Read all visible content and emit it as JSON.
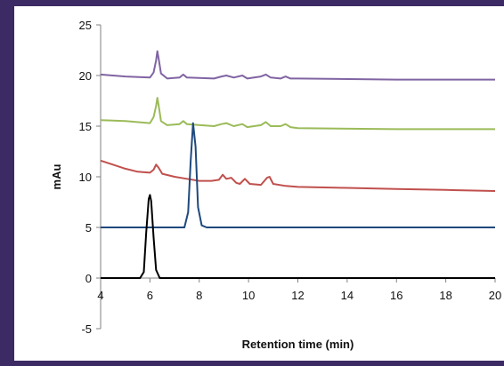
{
  "chart_data": {
    "type": "line",
    "title": "",
    "xlabel": "Retention time (min)",
    "ylabel": "mAu",
    "xlim": [
      4,
      20
    ],
    "ylim": [
      -5,
      25
    ],
    "x_ticks": [
      "4",
      "6",
      "8",
      "10",
      "12",
      "14",
      "16",
      "18",
      "20"
    ],
    "y_ticks": [
      "-5",
      "0",
      "5",
      "10",
      "15",
      "20",
      "25"
    ],
    "grid": false,
    "legend": "none",
    "series": [
      {
        "color": "#8064a2",
        "points": [
          [
            4.0,
            20.1
          ],
          [
            5.0,
            19.9
          ],
          [
            6.0,
            19.8
          ],
          [
            6.15,
            20.3
          ],
          [
            6.25,
            21.5
          ],
          [
            6.3,
            22.4
          ],
          [
            6.35,
            21.7
          ],
          [
            6.45,
            20.2
          ],
          [
            6.7,
            19.7
          ],
          [
            7.2,
            19.8
          ],
          [
            7.35,
            20.1
          ],
          [
            7.5,
            19.8
          ],
          [
            8.6,
            19.7
          ],
          [
            8.9,
            19.9
          ],
          [
            9.1,
            20.0
          ],
          [
            9.4,
            19.8
          ],
          [
            9.75,
            20.0
          ],
          [
            9.95,
            19.7
          ],
          [
            10.5,
            19.9
          ],
          [
            10.7,
            20.1
          ],
          [
            10.9,
            19.8
          ],
          [
            11.3,
            19.7
          ],
          [
            11.5,
            19.9
          ],
          [
            11.7,
            19.7
          ],
          [
            12.0,
            19.7
          ],
          [
            16.0,
            19.6
          ],
          [
            20.0,
            19.6
          ]
        ]
      },
      {
        "color": "#9bbb59",
        "points": [
          [
            4.0,
            15.6
          ],
          [
            5.0,
            15.5
          ],
          [
            6.0,
            15.3
          ],
          [
            6.15,
            15.9
          ],
          [
            6.25,
            17.0
          ],
          [
            6.3,
            17.8
          ],
          [
            6.35,
            17.1
          ],
          [
            6.45,
            15.5
          ],
          [
            6.7,
            15.1
          ],
          [
            7.2,
            15.2
          ],
          [
            7.35,
            15.5
          ],
          [
            7.5,
            15.2
          ],
          [
            8.6,
            15.0
          ],
          [
            8.9,
            15.2
          ],
          [
            9.1,
            15.3
          ],
          [
            9.4,
            15.0
          ],
          [
            9.75,
            15.2
          ],
          [
            9.95,
            14.9
          ],
          [
            10.5,
            15.1
          ],
          [
            10.7,
            15.4
          ],
          [
            10.9,
            15.0
          ],
          [
            11.3,
            15.0
          ],
          [
            11.5,
            15.2
          ],
          [
            11.7,
            14.9
          ],
          [
            12.0,
            14.8
          ],
          [
            16.0,
            14.7
          ],
          [
            20.0,
            14.7
          ]
        ]
      },
      {
        "color": "#c0504d",
        "points": [
          [
            4.0,
            11.6
          ],
          [
            4.5,
            11.2
          ],
          [
            5.0,
            10.8
          ],
          [
            5.5,
            10.5
          ],
          [
            6.0,
            10.4
          ],
          [
            6.15,
            10.7
          ],
          [
            6.25,
            11.2
          ],
          [
            6.35,
            10.9
          ],
          [
            6.5,
            10.3
          ],
          [
            7.0,
            10.0
          ],
          [
            7.5,
            9.8
          ],
          [
            8.0,
            9.6
          ],
          [
            8.5,
            9.6
          ],
          [
            8.8,
            9.7
          ],
          [
            8.95,
            10.2
          ],
          [
            9.1,
            9.8
          ],
          [
            9.3,
            9.9
          ],
          [
            9.5,
            9.4
          ],
          [
            9.65,
            9.3
          ],
          [
            9.85,
            9.8
          ],
          [
            10.05,
            9.3
          ],
          [
            10.5,
            9.2
          ],
          [
            10.75,
            9.9
          ],
          [
            10.85,
            10.0
          ],
          [
            11.0,
            9.3
          ],
          [
            11.5,
            9.1
          ],
          [
            12.0,
            9.0
          ],
          [
            14.0,
            8.9
          ],
          [
            16.0,
            8.8
          ],
          [
            18.0,
            8.7
          ],
          [
            20.0,
            8.6
          ]
        ]
      },
      {
        "color": "#1f497d",
        "points": [
          [
            4.0,
            5.0
          ],
          [
            7.4,
            5.0
          ],
          [
            7.55,
            6.5
          ],
          [
            7.65,
            11.5
          ],
          [
            7.75,
            15.3
          ],
          [
            7.85,
            13.0
          ],
          [
            7.95,
            7.0
          ],
          [
            8.1,
            5.2
          ],
          [
            8.3,
            5.0
          ],
          [
            20.0,
            5.0
          ]
        ]
      },
      {
        "color": "#000000",
        "points": [
          [
            4.0,
            0.0
          ],
          [
            5.6,
            0.0
          ],
          [
            5.75,
            0.6
          ],
          [
            5.85,
            4.5
          ],
          [
            5.95,
            7.8
          ],
          [
            6.0,
            8.2
          ],
          [
            6.05,
            7.6
          ],
          [
            6.15,
            4.0
          ],
          [
            6.25,
            0.8
          ],
          [
            6.4,
            0.0
          ],
          [
            20.0,
            0.0
          ]
        ]
      }
    ]
  }
}
